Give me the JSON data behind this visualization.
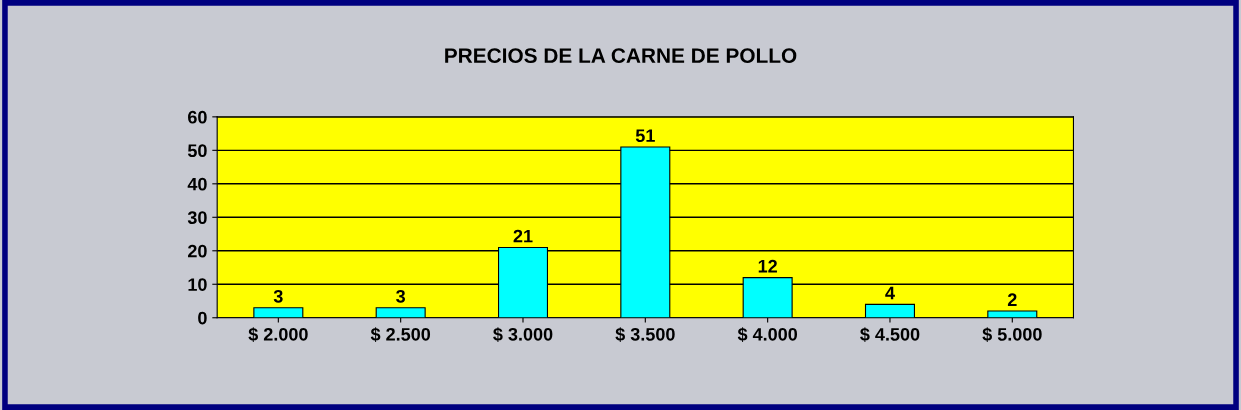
{
  "chart_data": {
    "type": "bar",
    "title": "PRECIOS DE LA CARNE DE POLLO",
    "categories": [
      "$ 2.000",
      "$ 2.500",
      "$ 3.000",
      "$ 3.500",
      "$ 4.000",
      "$ 4.500",
      "$ 5.000"
    ],
    "values": [
      3,
      3,
      21,
      51,
      12,
      4,
      2
    ],
    "color": "#00ffff",
    "ylim": [
      0,
      60
    ],
    "yticks": [
      0,
      10,
      20,
      30,
      40,
      50,
      60
    ],
    "grid": "y",
    "data_labels": true
  }
}
